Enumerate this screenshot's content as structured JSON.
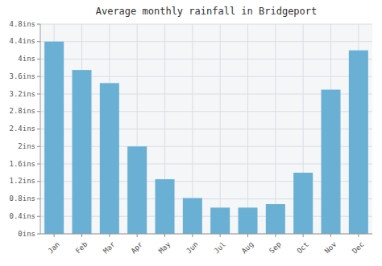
{
  "chart_data": {
    "type": "bar",
    "title": "Average monthly rainfall in Bridgeport",
    "categories": [
      "Jan",
      "Feb",
      "Mar",
      "Apr",
      "May",
      "Jun",
      "Jul",
      "Aug",
      "Sep",
      "Oct",
      "Nov",
      "Dec"
    ],
    "values": [
      4.4,
      3.75,
      3.45,
      2.0,
      1.25,
      0.82,
      0.6,
      0.6,
      0.68,
      1.4,
      3.3,
      4.2
    ],
    "color": "#6ab0d4",
    "ylim": [
      0,
      4.8
    ],
    "yticks": [
      {
        "value": 0,
        "label": "0ins"
      },
      {
        "value": 0.4,
        "label": "0.4ins"
      },
      {
        "value": 0.8,
        "label": "0.8ins"
      },
      {
        "value": 1.2,
        "label": "1.2ins"
      },
      {
        "value": 1.6,
        "label": "1.6ins"
      },
      {
        "value": 2.0,
        "label": "2ins"
      },
      {
        "value": 2.4,
        "label": "2.4ins"
      },
      {
        "value": 2.8,
        "label": "2.8ins"
      },
      {
        "value": 3.2,
        "label": "3.2ins"
      },
      {
        "value": 3.6,
        "label": "3.6ins"
      },
      {
        "value": 4.0,
        "label": "4ins"
      },
      {
        "value": 4.4,
        "label": "4.4ins"
      },
      {
        "value": 4.8,
        "label": "4.8ins"
      }
    ],
    "grid": true
  }
}
